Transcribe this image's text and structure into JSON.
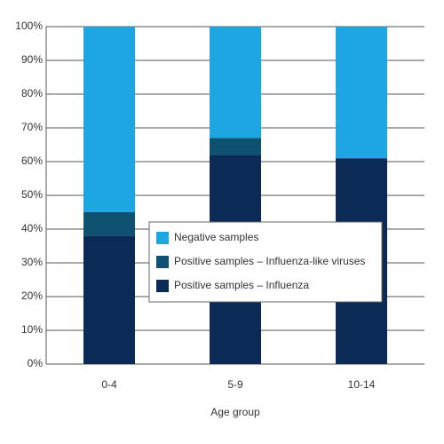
{
  "chart_data": {
    "type": "stacked-bar",
    "x_label": "Age group",
    "categories": [
      "0-4",
      "5-9",
      "10-14"
    ],
    "series": [
      {
        "name": "Positive samples – Influenza",
        "color": "#0b2a56",
        "values": [
          38,
          62,
          61
        ]
      },
      {
        "name": "Positive samples – Influenza-like viruses",
        "color": "#0f5171",
        "values": [
          7,
          5,
          0
        ]
      },
      {
        "name": "Negative samples",
        "color": "#1ea6e3",
        "values": [
          55,
          33,
          39
        ]
      }
    ],
    "ylim": [
      0,
      100
    ],
    "yticks": [
      {
        "value": 0,
        "label": "0%"
      },
      {
        "value": 10,
        "label": "10%"
      },
      {
        "value": 20,
        "label": "20%"
      },
      {
        "value": 30,
        "label": "30%"
      },
      {
        "value": 40,
        "label": "40%"
      },
      {
        "value": 50,
        "label": "50%"
      },
      {
        "value": 60,
        "label": "60%"
      },
      {
        "value": 70,
        "label": "70%"
      },
      {
        "value": 80,
        "label": "80%"
      },
      {
        "value": 90,
        "label": "90%"
      },
      {
        "value": 100,
        "label": "100%"
      }
    ],
    "grid": true
  }
}
